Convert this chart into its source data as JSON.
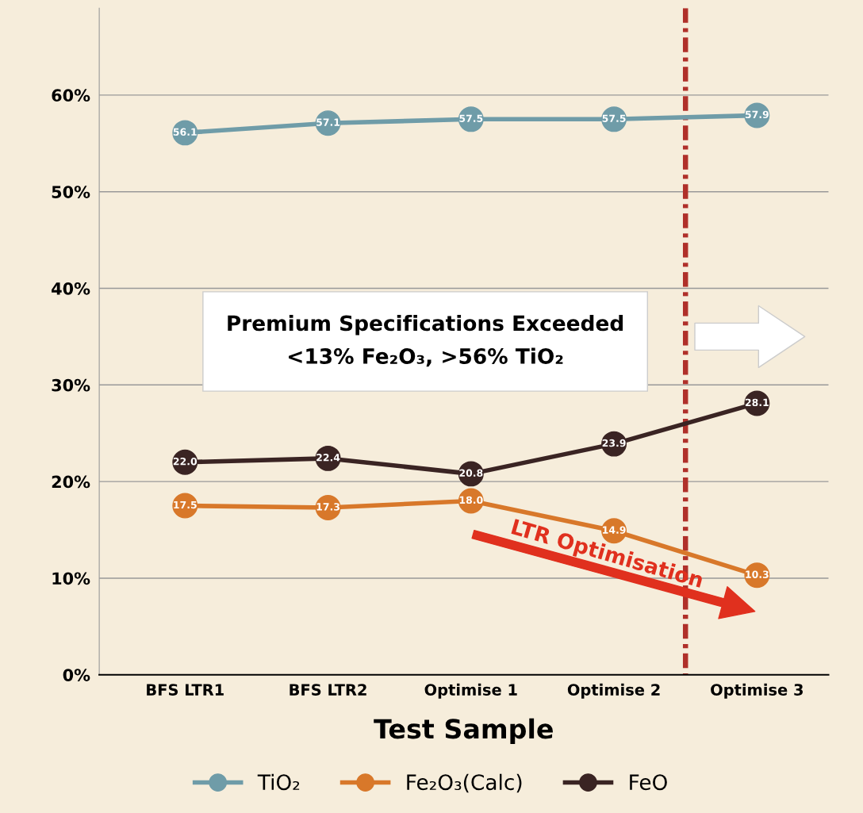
{
  "chart_data": {
    "type": "line",
    "xlabel": "Test Sample",
    "categories": [
      "BFS LTR1",
      "BFS LTR2",
      "Optimise 1",
      "Optimise 2",
      "Optimise 3"
    ],
    "series": [
      {
        "name": "TiO₂",
        "color": "#6f9ca8",
        "values": [
          56.1,
          57.1,
          57.5,
          57.5,
          57.9
        ],
        "value_labels": [
          "56.1",
          "57.1",
          "57.5",
          "57.5",
          "57.9"
        ]
      },
      {
        "name": "Fe₂O₃(Calc)",
        "color": "#d8782a",
        "values": [
          17.5,
          17.3,
          18.0,
          14.9,
          10.3
        ],
        "value_labels": [
          "17.5",
          "17.3",
          "18.0",
          "14.9",
          "10.3"
        ]
      },
      {
        "name": "FeO",
        "color": "#3a2423",
        "values": [
          22.0,
          22.4,
          20.8,
          23.9,
          28.1
        ],
        "value_labels": [
          "22.0",
          "22.4",
          "20.8",
          "23.9",
          "28.1"
        ]
      }
    ],
    "ylim": [
      0,
      69
    ],
    "yticks": [
      {
        "value": 0,
        "label": "0%"
      },
      {
        "value": 10,
        "label": "10%"
      },
      {
        "value": 20,
        "label": "20%"
      },
      {
        "value": 30,
        "label": "30%"
      },
      {
        "value": 40,
        "label": "40%"
      },
      {
        "value": 50,
        "label": "50%"
      },
      {
        "value": 60,
        "label": "60%"
      }
    ],
    "annotations": [
      "Premium Specifications Exceeded\n<13% Fe₂O₃, >56% TiO₂",
      "LTR Optimisation"
    ],
    "grid": "y",
    "legend": "bottom",
    "marker": "circle",
    "line_style": "solid"
  }
}
